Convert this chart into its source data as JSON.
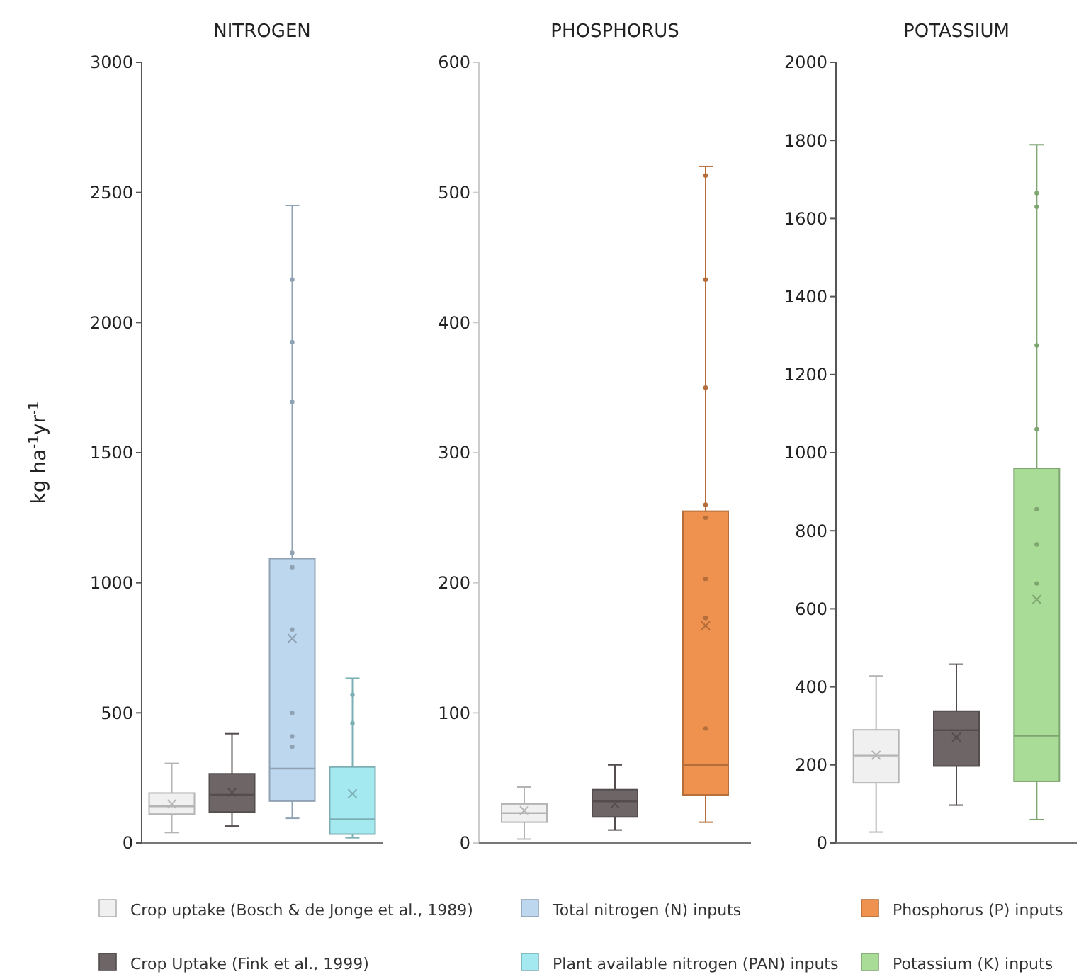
{
  "chart_data": [
    {
      "type": "box",
      "title": "NITROGEN",
      "ylabel": "kg ha$^{-1}$yr$^{-1}$",
      "categories": [
        null,
        null,
        null,
        null
      ],
      "ylim": [
        0,
        3000
      ],
      "yticks": [
        0,
        500,
        1000,
        1500,
        2000,
        2500,
        3000
      ],
      "legend": "bottom",
      "marker": "circle",
      "series": [
        {
          "name": "Crop uptake (Bosch & de Jonge et al., 1989)",
          "color": "#f0f0f0",
          "boxes": [
            {
              "low": 40,
              "q1": 111,
              "median": 141,
              "q3": 192,
              "high": 306,
              "mean": 150
            },
            null,
            null,
            null
          ]
        },
        {
          "name": "Crop Uptake (Fink et al., 1999)",
          "color": "#6e6666",
          "boxes": [
            null,
            {
              "low": 65,
              "q1": 119,
              "median": 185,
              "q3": 266,
              "high": 420,
              "mean": 195
            },
            null,
            null
          ]
        },
        {
          "name": "Total nitrogen (N) inputs",
          "color": "#bdd7ee",
          "boxes": [
            null,
            null,
            {
              "low": 95,
              "q1": 161,
              "median": 286,
              "q3": 1093,
              "high": 2450,
              "mean": 786,
              "outliers": [
                2165,
                1925,
                1695,
                1115,
                1060,
                820,
                500,
                410,
                370
              ]
            },
            null
          ]
        },
        {
          "name": "Plant available nitrogen (PAN) inputs",
          "color": "#a5e9f0",
          "boxes": [
            null,
            null,
            null,
            {
              "low": 20,
              "q1": 34,
              "median": 91,
              "q3": 292,
              "high": 633,
              "mean": 190,
              "outliers": [
                570,
                460
              ]
            }
          ]
        }
      ]
    },
    {
      "type": "box",
      "title": "PHOSPHORUS",
      "categories": [
        null,
        null,
        null
      ],
      "ylim": [
        0,
        600
      ],
      "yticks": [
        0,
        100,
        200,
        300,
        400,
        500,
        600
      ],
      "marker": "circle",
      "series": [
        {
          "color": "#f0f0f0",
          "boxes": [
            {
              "low": 3,
              "q1": 16,
              "median": 23,
              "q3": 30,
              "high": 43,
              "mean": 25
            },
            null,
            null
          ]
        },
        {
          "color": "#6e6666",
          "boxes": [
            null,
            {
              "low": 10,
              "q1": 20,
              "median": 32,
              "q3": 41,
              "high": 60,
              "mean": 30
            },
            null
          ]
        },
        {
          "name": "Phosphorus (P) inputs",
          "color": "#f0924f",
          "boxes": [
            null,
            null,
            {
              "low": 16,
              "q1": 37,
              "median": 60,
              "q3": 255,
              "high": 520,
              "mean": 167,
              "outliers": [
                513,
                433,
                350,
                260,
                250,
                203,
                173,
                88
              ]
            }
          ]
        }
      ]
    },
    {
      "type": "box",
      "title": "POTASSIUM",
      "categories": [
        null,
        null,
        null
      ],
      "ylim": [
        0,
        2000
      ],
      "yticks": [
        0,
        200,
        400,
        600,
        800,
        1000,
        1200,
        1400,
        1600,
        1800,
        2000
      ],
      "marker": "circle",
      "series": [
        {
          "color": "#f0f0f0",
          "boxes": [
            {
              "low": 28,
              "q1": 154,
              "median": 224,
              "q3": 290,
              "high": 428,
              "mean": 225
            },
            null,
            null
          ]
        },
        {
          "color": "#6e6666",
          "boxes": [
            null,
            {
              "low": 97,
              "q1": 197,
              "median": 289,
              "q3": 338,
              "high": 458,
              "mean": 271
            },
            null
          ]
        },
        {
          "name": "Potassium (K) inputs",
          "color": "#a9dc96",
          "boxes": [
            null,
            null,
            {
              "low": 60,
              "q1": 158,
              "median": 275,
              "q3": 960,
              "high": 1789,
              "mean": 624,
              "outliers": [
                1665,
                1630,
                1275,
                1060,
                855,
                765,
                665
              ]
            }
          ]
        }
      ]
    }
  ]
}
